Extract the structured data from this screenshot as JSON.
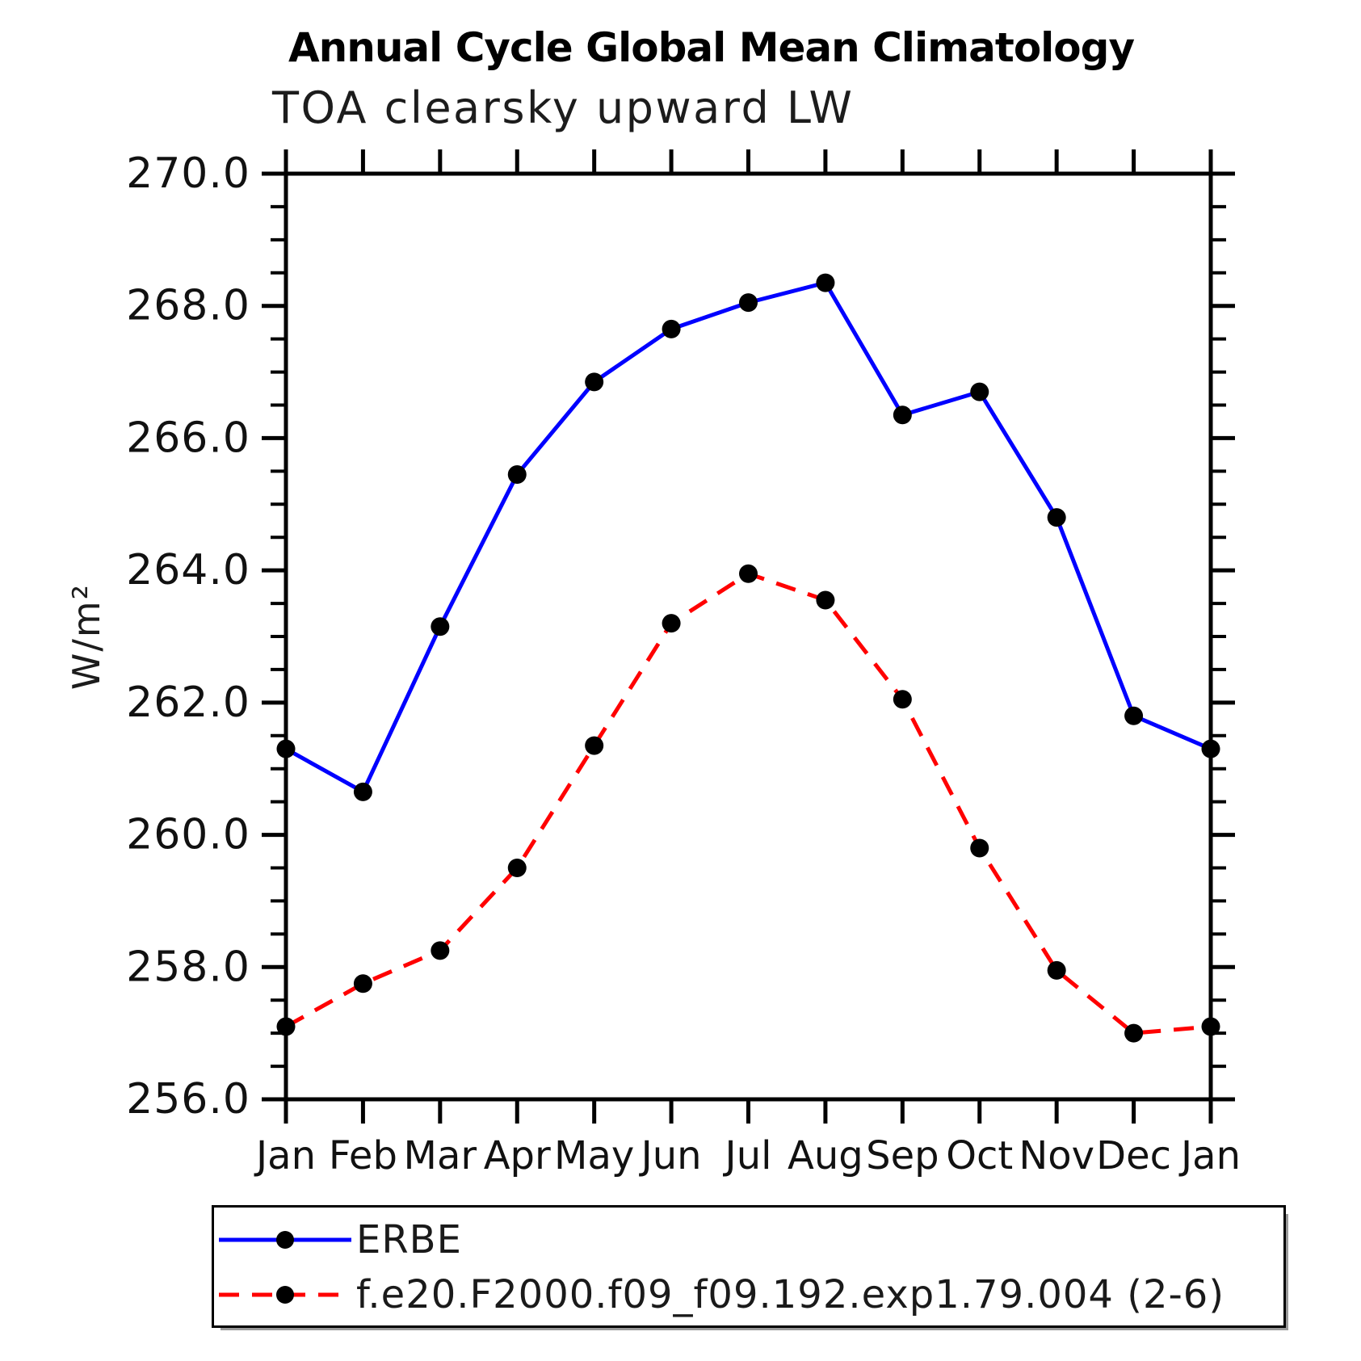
{
  "chart_data": {
    "type": "line",
    "title": "Annual Cycle Global Mean Climatology",
    "subtitle": "TOA clearsky upward LW",
    "ylabel": "W/m²",
    "xlabel": "",
    "categories": [
      "Jan",
      "Feb",
      "Mar",
      "Apr",
      "May",
      "Jun",
      "Jul",
      "Aug",
      "Sep",
      "Oct",
      "Nov",
      "Dec",
      "Jan"
    ],
    "ylim": [
      256.0,
      270.0
    ],
    "y_major_step": 2.0,
    "y_minor_step": 0.5,
    "y_tick_labels": [
      "270.0",
      "268.0",
      "266.0",
      "264.0",
      "262.0",
      "260.0",
      "258.0",
      "256.0"
    ],
    "grid": false,
    "legend_position": "bottom-left",
    "series": [
      {
        "name": "ERBE",
        "color": "#0000ff",
        "line_style": "solid",
        "marker": "filled-circle",
        "marker_color": "#000000",
        "values": [
          261.3,
          260.65,
          263.15,
          265.45,
          266.85,
          267.65,
          268.05,
          268.35,
          266.35,
          266.7,
          264.8,
          261.8,
          261.3
        ]
      },
      {
        "name": "f.e20.F2000.f09_f09.192.exp1.79.004 (2-6)",
        "color": "#ff0000",
        "line_style": "dashed",
        "marker": "filled-circle",
        "marker_color": "#000000",
        "values": [
          257.1,
          257.75,
          258.25,
          259.5,
          261.35,
          263.2,
          263.95,
          263.55,
          262.05,
          259.8,
          257.95,
          257.0,
          257.1
        ]
      }
    ]
  }
}
